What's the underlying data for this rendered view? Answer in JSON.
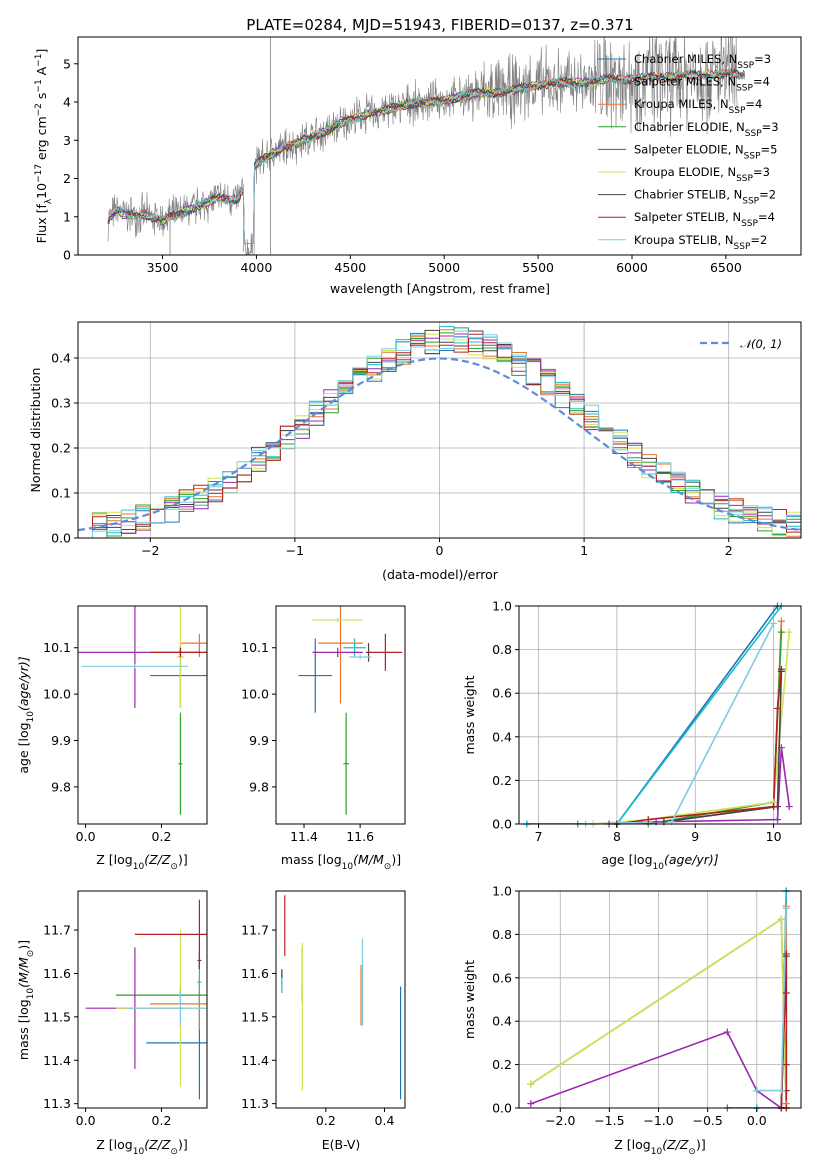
{
  "figure_title": "PLATE=0284, MJD=51943, FIBERID=0137, z=0.371",
  "colors": {
    "Chabrier MILES": "#1f77b4",
    "Salpeter MILES": "#17becf",
    "Kroupa MILES": "#e8762b",
    "Chabrier ELODIE": "#2ca02c",
    "Salpeter ELODIE": "#9c27b0",
    "Kroupa ELODIE": "#d4e157",
    "Chabrier STELIB": "#444444",
    "Salpeter STELIB": "#b22222",
    "Kroupa STELIB": "#80cbe0",
    "data": "#7f7f7f",
    "normal": "#5b8dd9"
  },
  "chart_data": [
    {
      "type": "line",
      "panel": "spectrum",
      "title": "PLATE=0284, MJD=51943, FIBERID=0137, z=0.371",
      "xlabel": "wavelength [Angstrom, rest frame]",
      "ylabel_main": "Flux [f",
      "ylabel_sub": "λ",
      "ylabel_rest": "10",
      "ylabel_exp": "−17",
      "ylabel_unit": " erg cm",
      "xlim": [
        3050,
        6900
      ],
      "ylim": [
        0,
        5.7
      ],
      "xticks": [
        3500,
        4000,
        4500,
        5000,
        5500,
        6000,
        6500
      ],
      "yticks": [
        0,
        1,
        2,
        3,
        4,
        5
      ],
      "model_envelope": {
        "x": [
          3210,
          3260,
          3300,
          3400,
          3500,
          3600,
          3700,
          3800,
          3900,
          4000,
          4100,
          4200,
          4300,
          4400,
          4500,
          4600,
          4700,
          4800,
          4900,
          5000,
          5100,
          5200,
          5300,
          5400,
          5500,
          5600,
          5700,
          5800,
          5900,
          6000,
          6100,
          6200,
          6300,
          6400,
          6500,
          6600
        ],
        "y": [
          0.95,
          1.15,
          1.05,
          1.05,
          0.9,
          1.1,
          1.3,
          1.5,
          1.45,
          2.4,
          2.7,
          2.9,
          3.1,
          3.3,
          3.55,
          3.7,
          3.8,
          3.95,
          4.0,
          4.05,
          4.15,
          4.25,
          4.25,
          4.35,
          4.45,
          4.5,
          4.5,
          4.55,
          4.6,
          4.6,
          4.65,
          4.65,
          4.7,
          4.7,
          4.75,
          4.7
        ]
      },
      "legend": [
        {
          "label": "Chabrier MILES",
          "nssp": "3"
        },
        {
          "label": "Salpeter MILES",
          "nssp": "4"
        },
        {
          "label": "Kroupa MILES",
          "nssp": "4"
        },
        {
          "label": "Chabrier ELODIE",
          "nssp": "3"
        },
        {
          "label": "Salpeter ELODIE",
          "nssp": "5"
        },
        {
          "label": "Kroupa ELODIE",
          "nssp": "3"
        },
        {
          "label": "Chabrier STELIB",
          "nssp": "2"
        },
        {
          "label": "Salpeter STELIB",
          "nssp": "4"
        },
        {
          "label": "Kroupa STELIB",
          "nssp": "2"
        }
      ],
      "legend_prefix": ", N",
      "legend_sub": "SSP",
      "legend_placement": "upper-right"
    },
    {
      "type": "histogram",
      "panel": "residuals",
      "xlabel": "(data-model)/error",
      "ylabel": "Normed distribution",
      "xlim": [
        -2.5,
        2.5
      ],
      "ylim": [
        0,
        0.48
      ],
      "xticks": [
        -2,
        -1,
        0,
        1,
        2
      ],
      "xtick_labels": [
        "−2",
        "−1",
        "0",
        "1",
        "2"
      ],
      "yticks": [
        0.0,
        0.1,
        0.2,
        0.3,
        0.4
      ],
      "ytick_labels": [
        "0.0",
        "0.1",
        "0.2",
        "0.3",
        "0.4"
      ],
      "grid": true,
      "legend_label": "𝒩(0, 1)",
      "legend_placement": "upper-right"
    },
    {
      "type": "errorbar",
      "panel": "age-vs-Z",
      "xlabel": "Z [log",
      "ylabel": "age  [log",
      "xlim": [
        -0.02,
        0.32
      ],
      "ylim": [
        9.72,
        10.19
      ],
      "xticks": [
        0.0,
        0.2
      ],
      "xtick_labels": [
        "0.0",
        "0.2"
      ],
      "yticks": [
        9.8,
        9.9,
        10.0,
        10.1
      ],
      "ytick_labels": [
        "9.8",
        "9.9",
        "10.0",
        "10.1"
      ],
      "points": [
        {
          "model": "Chabrier MILES",
          "x": 0.25,
          "y": 10.04,
          "xerr": 0.08,
          "yerr": 0.07
        },
        {
          "model": "Salpeter MILES",
          "x": 0.3,
          "y": 10.09,
          "xerr": 0.02,
          "yerr": 0.01
        },
        {
          "model": "Kroupa MILES",
          "x": 0.3,
          "y": 10.11,
          "xerr": 0.05,
          "yerr": 0.02
        },
        {
          "model": "Chabrier ELODIE",
          "x": 0.25,
          "y": 9.85,
          "xerr": 0.005,
          "yerr": 0.11
        },
        {
          "model": "Salpeter ELODIE",
          "x": 0.13,
          "y": 10.09,
          "xerr": 0.17,
          "yerr": 0.12
        },
        {
          "model": "Kroupa ELODIE",
          "x": 0.25,
          "y": 10.08,
          "xerr": 0.01,
          "yerr": 0.11
        },
        {
          "model": "Chabrier STELIB",
          "x": 0.25,
          "y": 10.09,
          "xerr": 0.005,
          "yerr": 0.01
        },
        {
          "model": "Salpeter STELIB",
          "x": 0.25,
          "y": 10.09,
          "xerr": 0.08,
          "yerr": 0.01
        },
        {
          "model": "Kroupa STELIB",
          "x": 0.13,
          "y": 10.06,
          "xerr": 0.14,
          "yerr": 0.005
        }
      ]
    },
    {
      "type": "errorbar",
      "panel": "age-vs-mass",
      "xlabel": "mass [log",
      "xlim": [
        11.3,
        11.76
      ],
      "ylim": [
        9.72,
        10.19
      ],
      "xticks": [
        11.4,
        11.6
      ],
      "xtick_labels": [
        "11.4",
        "11.6"
      ],
      "yticks": [
        9.8,
        9.9,
        10.0,
        10.1
      ],
      "ytick_labels": [
        "9.8",
        "9.9",
        "10.0",
        "10.1"
      ],
      "points": [
        {
          "model": "Chabrier MILES",
          "x": 11.44,
          "y": 10.04,
          "xerr": 0.06,
          "yerr": 0.08
        },
        {
          "model": "Salpeter MILES",
          "x": 11.58,
          "y": 10.1,
          "xerr": 0.04,
          "yerr": 0.02
        },
        {
          "model": "Kroupa MILES",
          "x": 11.53,
          "y": 10.11,
          "xerr": 0.08,
          "yerr": 0.13
        },
        {
          "model": "Chabrier ELODIE",
          "x": 11.55,
          "y": 9.85,
          "xerr": 0.01,
          "yerr": 0.11
        },
        {
          "model": "Salpeter ELODIE",
          "x": 11.52,
          "y": 10.09,
          "xerr": 0.09,
          "yerr": 0.01
        },
        {
          "model": "Kroupa ELODIE",
          "x": 11.52,
          "y": 10.16,
          "xerr": 0.09,
          "yerr": 0.005
        },
        {
          "model": "Chabrier STELIB",
          "x": 11.63,
          "y": 10.09,
          "xerr": 0.01,
          "yerr": 0.02
        },
        {
          "model": "Salpeter STELIB",
          "x": 11.69,
          "y": 10.09,
          "xerr": 0.06,
          "yerr": 0.04
        },
        {
          "model": "Kroupa STELIB",
          "x": 11.6,
          "y": 10.08,
          "xerr": 0.04,
          "yerr": 0.005
        }
      ]
    },
    {
      "type": "line",
      "panel": "mass-weight-vs-age",
      "xlabel": "age  [log",
      "ylabel": "mass weight",
      "xlim": [
        6.75,
        10.35
      ],
      "ylim": [
        0,
        1.0
      ],
      "xticks": [
        7,
        8,
        9,
        10
      ],
      "xtick_labels": [
        "7",
        "8",
        "9",
        "10"
      ],
      "yticks": [
        0.0,
        0.2,
        0.4,
        0.6,
        0.8,
        1.0
      ],
      "ytick_labels": [
        "0.0",
        "0.2",
        "0.4",
        "0.6",
        "0.8",
        "1.0"
      ],
      "grid": true,
      "series": [
        {
          "model": "Chabrier MILES",
          "x": [
            6.85,
            8.0,
            10.05
          ],
          "y": [
            0.0,
            0.0,
            1.0
          ]
        },
        {
          "model": "Salpeter MILES",
          "x": [
            6.85,
            8.0,
            10.1
          ],
          "y": [
            0.0,
            0.0,
            1.0
          ]
        },
        {
          "model": "Kroupa MILES",
          "x": [
            7.7,
            8.6,
            10.0,
            10.1
          ],
          "y": [
            0.0,
            0.01,
            0.08,
            0.93
          ]
        },
        {
          "model": "Chabrier ELODIE",
          "x": [
            7.5,
            8.4,
            10.0,
            10.1
          ],
          "y": [
            0.0,
            0.0,
            0.1,
            0.88
          ]
        },
        {
          "model": "Salpeter ELODIE",
          "x": [
            7.9,
            8.5,
            10.05,
            10.1,
            10.2
          ],
          "y": [
            0.0,
            0.01,
            0.02,
            0.35,
            0.08
          ]
        },
        {
          "model": "Kroupa ELODIE",
          "x": [
            7.7,
            8.4,
            10.0,
            10.2
          ],
          "y": [
            0.0,
            0.02,
            0.1,
            0.88
          ]
        },
        {
          "model": "Chabrier STELIB",
          "x": [
            8.0,
            8.6,
            10.05,
            10.1
          ],
          "y": [
            0.0,
            0.01,
            0.08,
            0.7
          ]
        },
        {
          "model": "Salpeter STELIB",
          "x": [
            8.0,
            8.4,
            10.0,
            10.05,
            10.1
          ],
          "y": [
            0.0,
            0.02,
            0.08,
            0.53,
            0.71
          ]
        },
        {
          "model": "Kroupa STELIB",
          "x": [
            7.6,
            8.7,
            10.0
          ],
          "y": [
            0.0,
            0.01,
            0.92
          ]
        }
      ]
    },
    {
      "type": "errorbar",
      "panel": "mass-vs-Z",
      "xlabel": "Z [log",
      "ylabel": "mass [log",
      "xlim": [
        -0.02,
        0.32
      ],
      "ylim": [
        11.29,
        11.79
      ],
      "xticks": [
        0.0,
        0.2
      ],
      "xtick_labels": [
        "0.0",
        "0.2"
      ],
      "yticks": [
        11.3,
        11.4,
        11.5,
        11.6,
        11.7
      ],
      "ytick_labels": [
        "11.3",
        "11.4",
        "11.5",
        "11.6",
        "11.7"
      ],
      "points": [
        {
          "model": "Chabrier MILES",
          "x": 0.3,
          "y": 11.44,
          "xerr": 0.14,
          "yerr": 0.13
        },
        {
          "model": "Salpeter MILES",
          "x": 0.3,
          "y": 11.58,
          "xerr": 0.005,
          "yerr": 0.05
        },
        {
          "model": "Kroupa MILES",
          "x": 0.3,
          "y": 11.53,
          "xerr": 0.13,
          "yerr": 0.06
        },
        {
          "model": "Chabrier ELODIE",
          "x": 0.25,
          "y": 11.55,
          "xerr": 0.17,
          "yerr": 0.02
        },
        {
          "model": "Salpeter ELODIE",
          "x": 0.13,
          "y": 11.52,
          "xerr": 0.13,
          "yerr": 0.14
        },
        {
          "model": "Kroupa ELODIE",
          "x": 0.25,
          "y": 11.52,
          "xerr": 0.17,
          "yerr": 0.18
        },
        {
          "model": "Chabrier STELIB",
          "x": 0.3,
          "y": 11.63,
          "xerr": 0.005,
          "yerr": 0.02
        },
        {
          "model": "Salpeter STELIB",
          "x": 0.3,
          "y": 11.69,
          "xerr": 0.17,
          "yerr": 0.08
        },
        {
          "model": "Kroupa STELIB",
          "x": 0.25,
          "y": 11.52,
          "xerr": 0.14,
          "yerr": 0.04
        }
      ]
    },
    {
      "type": "errorbar",
      "panel": "mass-vs-EBV",
      "xlabel": "E(B-V)",
      "xlim": [
        0.03,
        0.47
      ],
      "ylim": [
        11.29,
        11.79
      ],
      "xticks": [
        0.2,
        0.4
      ],
      "xtick_labels": [
        "0.2",
        "0.4"
      ],
      "yticks": [
        11.3,
        11.4,
        11.5,
        11.6,
        11.7
      ],
      "ytick_labels": [
        "11.3",
        "11.4",
        "11.5",
        "11.6",
        "11.7"
      ],
      "points": [
        {
          "model": "Chabrier MILES",
          "x": 0.455,
          "y": 11.44,
          "xerr": 0.0,
          "yerr": 0.13
        },
        {
          "model": "Salpeter MILES",
          "x": 0.05,
          "y": 11.58,
          "xerr": 0.0,
          "yerr": 0.025
        },
        {
          "model": "Kroupa MILES",
          "x": 0.32,
          "y": 11.55,
          "xerr": 0.0,
          "yerr": 0.07
        },
        {
          "model": "Chabrier ELODIE",
          "x": 0.12,
          "y": 11.55,
          "xerr": 0.0,
          "yerr": 0.02
        },
        {
          "model": "Salpeter ELODIE",
          "x": 0.12,
          "y": 11.6,
          "xerr": 0.0,
          "yerr": 0.06
        },
        {
          "model": "Kroupa ELODIE",
          "x": 0.12,
          "y": 11.5,
          "xerr": 0.0,
          "yerr": 0.17
        },
        {
          "model": "Chabrier STELIB",
          "x": 0.05,
          "y": 11.6,
          "xerr": 0.0,
          "yerr": 0.01
        },
        {
          "model": "Salpeter STELIB",
          "x": 0.06,
          "y": 11.71,
          "xerr": 0.0,
          "yerr": 0.07
        },
        {
          "model": "Kroupa STELIB",
          "x": 0.325,
          "y": 11.58,
          "xerr": 0.0,
          "yerr": 0.1
        }
      ]
    },
    {
      "type": "line",
      "panel": "mass-weight-vs-Z",
      "xlabel": "Z [log",
      "ylabel": "mass weight",
      "xlim": [
        -2.42,
        0.45
      ],
      "ylim": [
        0,
        1.0
      ],
      "xticks": [
        -2.0,
        -1.5,
        -1.0,
        -0.5,
        0.0
      ],
      "xtick_labels": [
        "−2.0",
        "−1.5",
        "−1.0",
        "−0.5",
        "0.0"
      ],
      "yticks": [
        0.0,
        0.2,
        0.4,
        0.6,
        0.8,
        1.0
      ],
      "ytick_labels": [
        "0.0",
        "0.2",
        "0.4",
        "0.6",
        "0.8",
        "1.0"
      ],
      "grid": true,
      "series": [
        {
          "model": "Chabrier MILES",
          "x": [
            -0.3,
            0.0,
            0.25,
            0.3
          ],
          "y": [
            0.0,
            0.0,
            0.0,
            1.0
          ]
        },
        {
          "model": "Salpeter MILES",
          "x": [
            0.0,
            0.25,
            0.3
          ],
          "y": [
            0.0,
            0.0,
            1.0
          ]
        },
        {
          "model": "Kroupa MILES",
          "x": [
            0.25,
            0.3,
            0.3
          ],
          "y": [
            0.0,
            0.93,
            0.02
          ]
        },
        {
          "model": "Chabrier ELODIE",
          "x": [
            -2.3,
            0.25,
            0.3
          ],
          "y": [
            0.11,
            0.87,
            0.0
          ]
        },
        {
          "model": "Salpeter ELODIE",
          "x": [
            -2.3,
            -0.3,
            0.0,
            0.25,
            0.3
          ],
          "y": [
            0.02,
            0.35,
            0.08,
            0.0,
            0.0
          ]
        },
        {
          "model": "Kroupa ELODIE",
          "x": [
            -2.3,
            0.25,
            0.3
          ],
          "y": [
            0.11,
            0.87,
            0.0
          ]
        },
        {
          "model": "Chabrier STELIB",
          "x": [
            0.25,
            0.3
          ],
          "y": [
            0.0,
            0.7
          ]
        },
        {
          "model": "Salpeter STELIB",
          "x": [
            0.25,
            0.3,
            0.3,
            0.3,
            0.3,
            0.3
          ],
          "y": [
            0.0,
            0.71,
            0.53,
            0.2,
            0.08,
            0.0
          ]
        },
        {
          "model": "Kroupa STELIB",
          "x": [
            0.0,
            0.25,
            0.3
          ],
          "y": [
            0.08,
            0.08,
            0.92
          ]
        }
      ]
    }
  ],
  "label_parts": {
    "zsun_sub": "10",
    "zsun": "(Z/Z",
    "sun": "⊙",
    "close": ")]",
    "age_unit": "(age/yr)]",
    "mass_unit": "(M/M",
    "ylabel_exp2": "−2",
    "s_exp": "−1",
    "A": " A",
    "s": " s"
  }
}
